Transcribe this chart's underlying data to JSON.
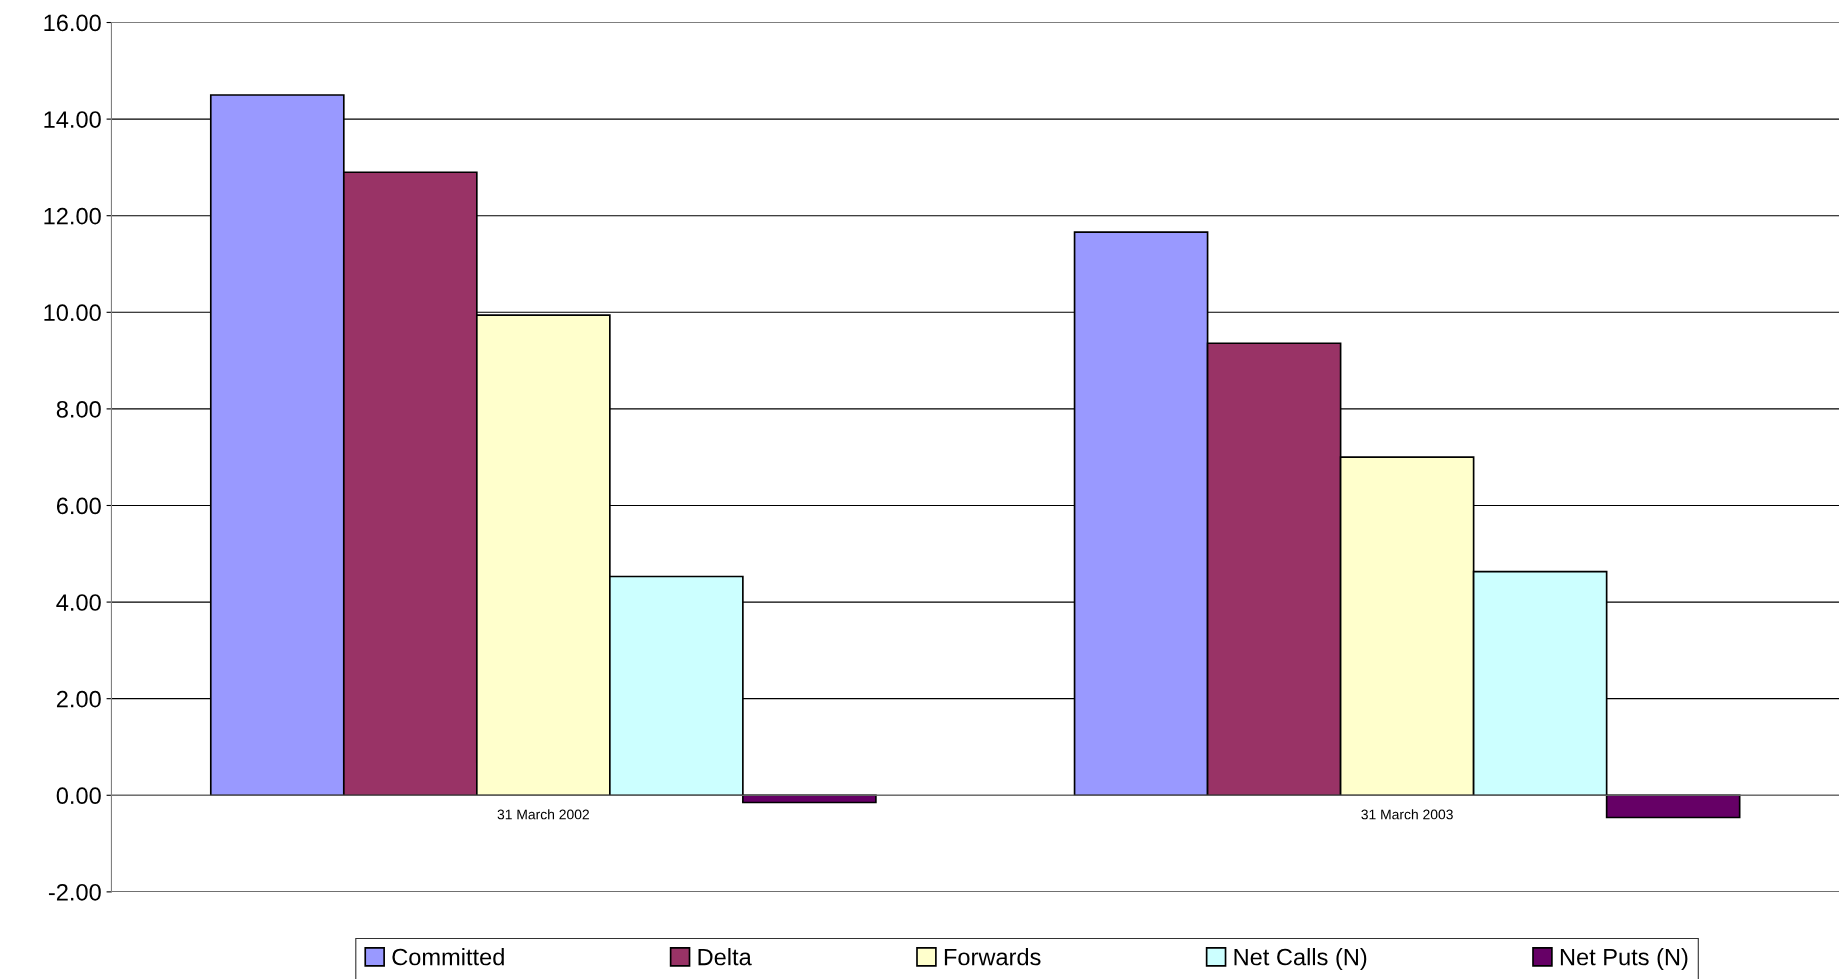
{
  "chart_data": {
    "type": "bar",
    "categories": [
      "31 March 2002",
      "31 March 2003"
    ],
    "series": [
      {
        "name": "Committed",
        "color": "#9999ff",
        "values": [
          14.5,
          11.66
        ]
      },
      {
        "name": "Delta",
        "color": "#993366",
        "values": [
          12.9,
          9.36
        ]
      },
      {
        "name": "Forwards",
        "color": "#ffffcc",
        "values": [
          9.94,
          7.0
        ]
      },
      {
        "name": "Net Calls (N)",
        "color": "#ccffff",
        "values": [
          4.53,
          4.63
        ]
      },
      {
        "name": "Net Puts (N)",
        "color": "#660066",
        "values": [
          -0.15,
          -0.46
        ]
      }
    ],
    "ylim": [
      -2,
      16
    ],
    "yticks": [
      {
        "value": -2,
        "label": "-2.00"
      },
      {
        "value": 0,
        "label": "0.00"
      },
      {
        "value": 2,
        "label": "2.00"
      },
      {
        "value": 4,
        "label": "4.00"
      },
      {
        "value": 6,
        "label": "6.00"
      },
      {
        "value": 8,
        "label": "8.00"
      },
      {
        "value": 10,
        "label": "10.00"
      },
      {
        "value": 12,
        "label": "12.00"
      },
      {
        "value": 14,
        "label": "14.00"
      },
      {
        "value": 16,
        "label": "16.00"
      }
    ],
    "grid": "y",
    "legend": "bottom"
  }
}
